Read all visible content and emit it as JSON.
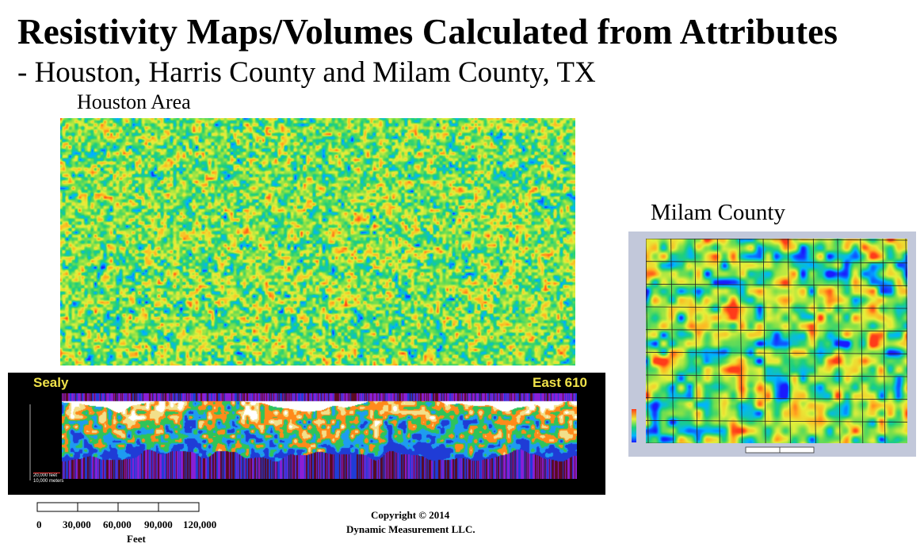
{
  "slide": {
    "title": "Resistivity Maps/Volumes Calculated from Attributes",
    "subtitle": "- Houston, Harris County and Milam County, TX"
  },
  "houston": {
    "label": "Houston Area"
  },
  "cross_section": {
    "left_label": "Sealy",
    "right_label": "East 610",
    "inset_scale_1": "20,000 feet",
    "inset_scale_2": "10,000 meters"
  },
  "milam": {
    "label": "Milam County"
  },
  "scale_bar": {
    "ticks": [
      "0",
      "30,000",
      "60,000",
      "90,000",
      "120,000"
    ],
    "unit": "Feet"
  },
  "copyright": {
    "line1": "Copyright  © 2014",
    "line2": "Dynamic Measurement LLC."
  },
  "colors": {
    "map_palette": [
      "#1a1aff",
      "#00b5ff",
      "#1fd07a",
      "#7fe04a",
      "#e6ef3a",
      "#ffb321",
      "#ff3b1a"
    ],
    "xsec_palette": [
      "#ffffff",
      "#f2e08a",
      "#ff8a1a",
      "#2ec45a",
      "#1e9cf0",
      "#1f3cd6",
      "#8a1fd6",
      "#5a0a20"
    ],
    "label_yellow": "#f0e24a"
  }
}
